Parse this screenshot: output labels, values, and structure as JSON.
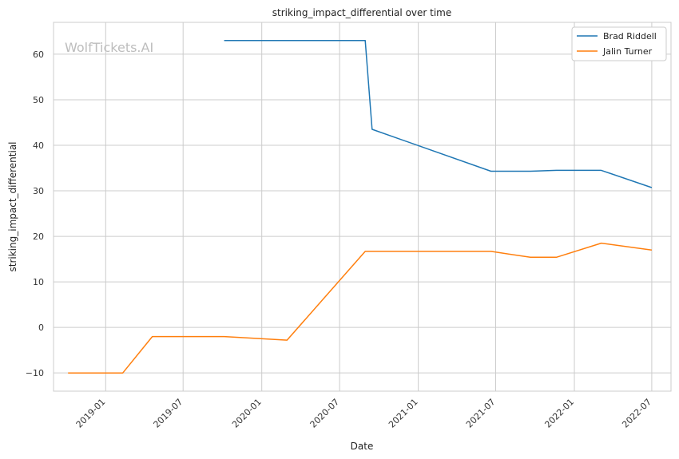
{
  "watermark": "WolfTickets.AI",
  "chart_data": {
    "type": "line",
    "title": "striking_impact_differential over time",
    "xlabel": "Date",
    "ylabel": "striking_impact_differential",
    "x_ticks": [
      "2019-01",
      "2019-07",
      "2020-01",
      "2020-07",
      "2021-01",
      "2021-07",
      "2022-01",
      "2022-07"
    ],
    "y_ticks": [
      -10,
      0,
      10,
      20,
      30,
      40,
      50,
      60
    ],
    "xlim": [
      "2018-09-01",
      "2022-08-15"
    ],
    "ylim": [
      -14,
      67
    ],
    "grid": true,
    "legend_position": "top-right",
    "series": [
      {
        "name": "Brad Riddell",
        "color": "#1f77b4",
        "points": [
          {
            "x": "2019-10-05",
            "y": 63
          },
          {
            "x": "2020-08-30",
            "y": 63
          },
          {
            "x": "2020-09-15",
            "y": 43.5
          },
          {
            "x": "2021-06-20",
            "y": 34.3
          },
          {
            "x": "2021-09-20",
            "y": 34.3
          },
          {
            "x": "2021-11-20",
            "y": 34.5
          },
          {
            "x": "2022-03-05",
            "y": 34.5
          },
          {
            "x": "2022-07-01",
            "y": 30.7
          }
        ]
      },
      {
        "name": "Jalin Turner",
        "color": "#ff7f0e",
        "points": [
          {
            "x": "2018-10-05",
            "y": -10
          },
          {
            "x": "2019-02-10",
            "y": -10
          },
          {
            "x": "2019-04-20",
            "y": -2
          },
          {
            "x": "2019-10-05",
            "y": -2
          },
          {
            "x": "2020-02-29",
            "y": -2.8
          },
          {
            "x": "2020-08-30",
            "y": 16.7
          },
          {
            "x": "2021-06-20",
            "y": 16.7
          },
          {
            "x": "2021-09-20",
            "y": 15.4
          },
          {
            "x": "2021-11-20",
            "y": 15.4
          },
          {
            "x": "2022-03-05",
            "y": 18.5
          },
          {
            "x": "2022-07-01",
            "y": 17
          }
        ]
      }
    ]
  }
}
